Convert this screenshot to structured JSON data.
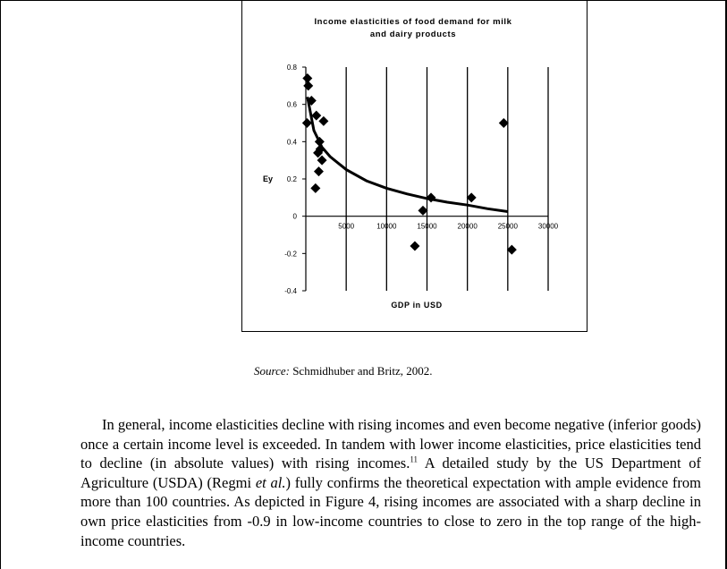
{
  "chart_data": {
    "type": "scatter",
    "title": "Income elasticities of food demand for milk and dairy products",
    "title_lines": [
      "Income elasticities of food demand for milk",
      "and dairy products"
    ],
    "xlabel": "GDP in USD",
    "ylabel": "Ey",
    "xlim": [
      0,
      30000
    ],
    "ylim": [
      -0.4,
      0.8
    ],
    "x_ticks": [
      "5000",
      "10000",
      "15000",
      "20000",
      "25000",
      "30000"
    ],
    "x_tick_values": [
      5000,
      10000,
      15000,
      20000,
      25000,
      30000
    ],
    "y_ticks": [
      "0.8",
      "0.6",
      "0.4",
      "0.2",
      "0",
      "-0.2",
      "-0.4"
    ],
    "y_tick_values": [
      0.8,
      0.6,
      0.4,
      0.2,
      0,
      -0.2,
      -0.4
    ],
    "grid": "vertical",
    "series": [
      {
        "points": [
          [
            200,
            0.74
          ],
          [
            300,
            0.7
          ],
          [
            150,
            0.5
          ],
          [
            700,
            0.62
          ],
          [
            1300,
            0.54
          ],
          [
            2200,
            0.51
          ],
          [
            1700,
            0.4
          ],
          [
            1800,
            0.36
          ],
          [
            1500,
            0.34
          ],
          [
            2000,
            0.3
          ],
          [
            1600,
            0.24
          ],
          [
            1200,
            0.15
          ],
          [
            14500,
            0.03
          ],
          [
            15500,
            0.1
          ],
          [
            20500,
            0.1
          ],
          [
            24500,
            0.5
          ],
          [
            13500,
            -0.16
          ],
          [
            25500,
            -0.18
          ]
        ]
      }
    ],
    "trend": [
      [
        200,
        0.64
      ],
      [
        1000,
        0.46
      ],
      [
        2000,
        0.37
      ],
      [
        3000,
        0.32
      ],
      [
        5000,
        0.25
      ],
      [
        7500,
        0.19
      ],
      [
        10000,
        0.15
      ],
      [
        12500,
        0.12
      ],
      [
        15000,
        0.095
      ],
      [
        17500,
        0.075
      ],
      [
        20000,
        0.06
      ],
      [
        22500,
        0.04
      ],
      [
        25000,
        0.025
      ]
    ]
  },
  "source": {
    "label": "Source:",
    "text": " Schmidhuber and Britz, 2002."
  },
  "body": {
    "p1_a": "In general, income elasticities decline with rising incomes and even become negative (inferior goods) once a certain income level is exceeded. In tandem with lower income elasticities, price elasticities tend to decline (in absolute values) with rising incomes.",
    "footnote": "11",
    "p1_b": " A detailed study by the US Department of Agriculture (USDA) (Regmi ",
    "etal": "et al.",
    "p1_c": ") fully confirms the theoretical expectation with ample evidence from more than 100 countries. As depicted in Figure 4, rising incomes are associated with a sharp decline in own price elasticities from -0.9 in low-income countries to close to zero in the top range of the high-income countries."
  }
}
